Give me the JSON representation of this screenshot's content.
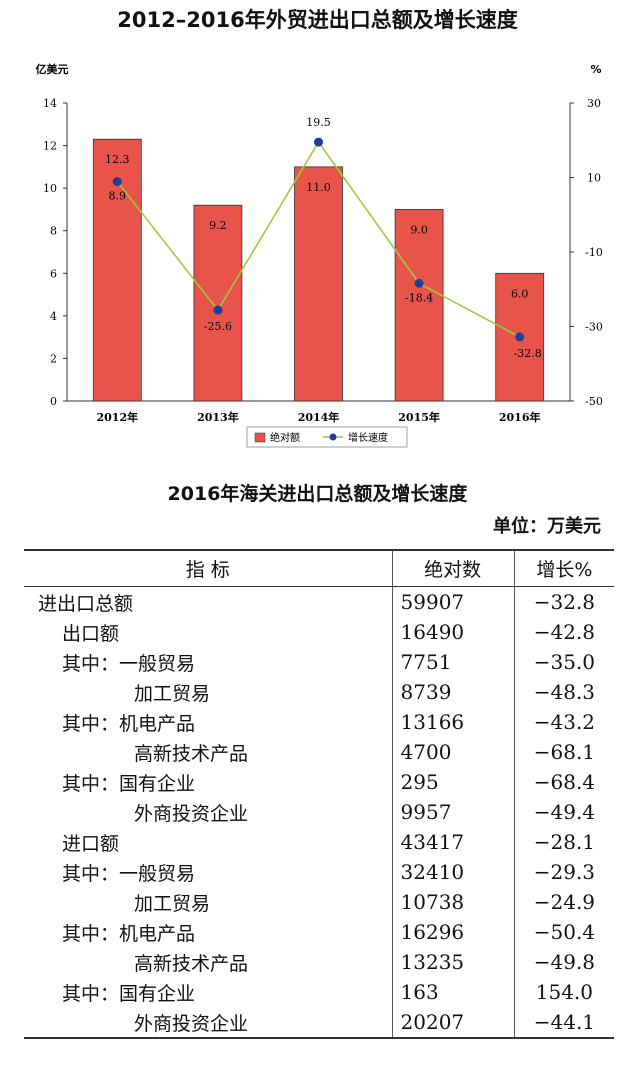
{
  "chart_data": {
    "type": "bar",
    "title": "2012–2016年外贸进出口总额及增长速度",
    "categories": [
      "2012年",
      "2013年",
      "2014年",
      "2015年",
      "2016年"
    ],
    "series": [
      {
        "name": "绝对额",
        "type": "bar",
        "axis": "left",
        "values": [
          12.3,
          9.2,
          11.0,
          9.0,
          6.0
        ],
        "color": "#e8544a"
      },
      {
        "name": "增长速度",
        "type": "line",
        "axis": "right",
        "values": [
          8.9,
          -25.6,
          19.5,
          -18.4,
          -32.8
        ],
        "color": "#9ecb3c",
        "marker_color": "#1f3d99"
      }
    ],
    "value_labels_bar": [
      "12.3",
      "9.2",
      "11.0",
      "9.0",
      "6.0"
    ],
    "value_labels_line": [
      "8.9",
      "-25.6",
      "19.5",
      "-18.4",
      "-32.8"
    ],
    "y_left_label": "亿美元",
    "y_right_label": "%",
    "ylim_left": [
      0,
      14
    ],
    "yticks_left": [
      0,
      2,
      4,
      6,
      8,
      10,
      12,
      14
    ],
    "ylim_right": [
      -50,
      30
    ],
    "yticks_right": [
      30,
      10,
      -10,
      -30,
      -50
    ],
    "legend_placement": "bottom"
  },
  "table": {
    "title": "2016年海关进出口总额及增长速度",
    "unit": "单位：万美元",
    "headers": [
      "指  标",
      "绝对数",
      "增长%"
    ],
    "rows": [
      {
        "label": "进出口总额",
        "value": "59907",
        "growth": "−32.8",
        "indent": 0
      },
      {
        "label": "出口额",
        "value": "16490",
        "growth": "−42.8",
        "indent": 1
      },
      {
        "label": "其中：一般贸易",
        "value": "7751",
        "growth": "−35.0",
        "indent": 2
      },
      {
        "label": "加工贸易",
        "value": "8739",
        "growth": "−48.3",
        "indent": 3
      },
      {
        "label": "其中：机电产品",
        "value": "13166",
        "growth": "−43.2",
        "indent": 2
      },
      {
        "label": "高新技术产品",
        "value": "4700",
        "growth": "−68.1",
        "indent": 3
      },
      {
        "label": "其中：国有企业",
        "value": "295",
        "growth": "−68.4",
        "indent": 2
      },
      {
        "label": "外商投资企业",
        "value": "9957",
        "growth": "−49.4",
        "indent": 3
      },
      {
        "label": "进口额",
        "value": "43417",
        "growth": "−28.1",
        "indent": 1
      },
      {
        "label": "其中：一般贸易",
        "value": "32410",
        "growth": "−29.3",
        "indent": 2
      },
      {
        "label": "加工贸易",
        "value": "10738",
        "growth": "−24.9",
        "indent": 3
      },
      {
        "label": "其中：机电产品",
        "value": "16296",
        "growth": "−50.4",
        "indent": 2
      },
      {
        "label": "高新技术产品",
        "value": "13235",
        "growth": "−49.8",
        "indent": 3
      },
      {
        "label": "其中：国有企业",
        "value": "163",
        "growth": "154.0",
        "indent": 2
      },
      {
        "label": "外商投资企业",
        "value": "20207",
        "growth": "−44.1",
        "indent": 3
      }
    ]
  }
}
